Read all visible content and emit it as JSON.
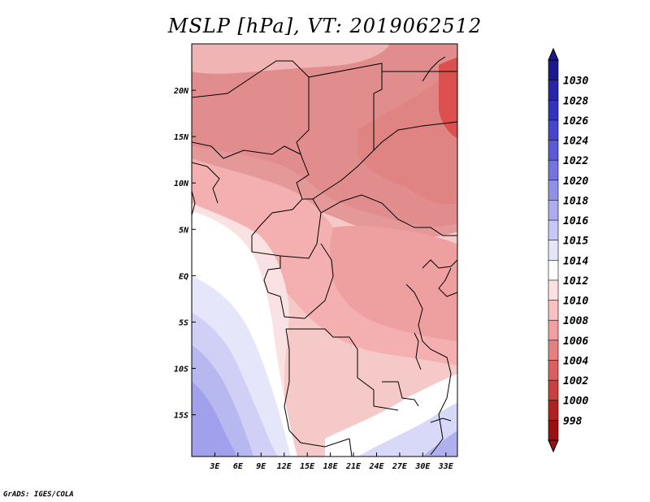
{
  "title": "MSLP [hPa], VT: 2019062512",
  "footer": "GrADS: IGES/COLA",
  "colors": {
    "land_border": "#000000",
    "frame": "#000000"
  },
  "chart_data": {
    "type": "heatmap",
    "title": "MSLP [hPa], VT: 2019062512",
    "xlabel": "",
    "ylabel": "",
    "x_ticks": [
      "3E",
      "6E",
      "9E",
      "12E",
      "15E",
      "18E",
      "21E",
      "24E",
      "27E",
      "30E",
      "33E"
    ],
    "x_tick_values": [
      3,
      6,
      9,
      12,
      15,
      18,
      21,
      24,
      27,
      30,
      33
    ],
    "y_ticks": [
      "20N",
      "15N",
      "10N",
      "5N",
      "EQ",
      "5S",
      "10S",
      "15S"
    ],
    "y_tick_values": [
      20,
      15,
      10,
      5,
      0,
      -5,
      -10,
      -15
    ],
    "xlim": [
      0,
      34.5
    ],
    "ylim": [
      -19.5,
      25
    ],
    "colorbar": {
      "levels": [
        1030,
        1028,
        1026,
        1024,
        1022,
        1020,
        1018,
        1016,
        1015,
        1014,
        1012,
        1010,
        1008,
        1006,
        1004,
        1002,
        1000,
        998
      ],
      "colors": [
        "#1a1a8c",
        "#2626a6",
        "#3333bf",
        "#4646cc",
        "#5a5ad6",
        "#7474de",
        "#9090e6",
        "#acacee",
        "#c8c8f4",
        "#e6e6fa",
        "#ffffff",
        "#fde0e0",
        "#f8c0c0",
        "#f0a0a0",
        "#e48080",
        "#d86060",
        "#c84040",
        "#b02020",
        "#981010"
      ]
    }
  }
}
